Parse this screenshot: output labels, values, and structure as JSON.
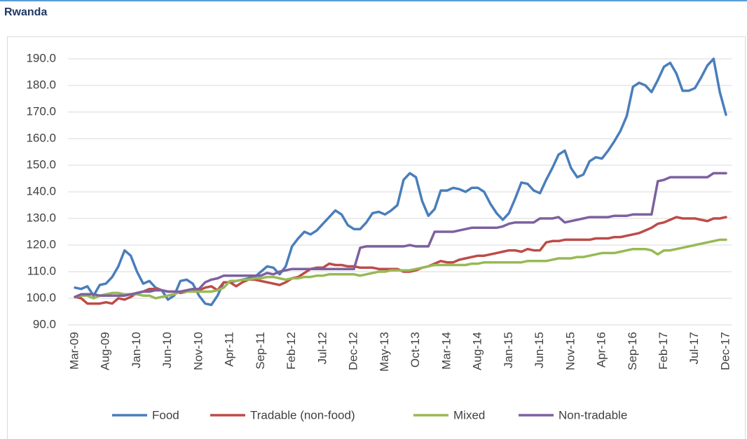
{
  "header": {
    "title": "Rwanda"
  },
  "chart_data": {
    "type": "line",
    "categories": [
      "Mar-09",
      null,
      null,
      null,
      null,
      "Aug-09",
      null,
      null,
      null,
      null,
      "Jan-10",
      null,
      null,
      null,
      null,
      "Jun-10",
      null,
      null,
      null,
      null,
      "Nov-10",
      null,
      null,
      null,
      null,
      "Apr-11",
      null,
      null,
      null,
      null,
      "Sep-11",
      null,
      null,
      null,
      null,
      "Feb-12",
      null,
      null,
      null,
      null,
      "Jul-12",
      null,
      null,
      null,
      null,
      "Dec-12",
      null,
      null,
      null,
      null,
      "May-13",
      null,
      null,
      null,
      null,
      "Oct-13",
      null,
      null,
      null,
      null,
      "Mar-14",
      null,
      null,
      null,
      null,
      "Aug-14",
      null,
      null,
      null,
      null,
      "Jan-15",
      null,
      null,
      null,
      null,
      "Jun-15",
      null,
      null,
      null,
      null,
      "Nov-15",
      null,
      null,
      null,
      null,
      "Apr-16",
      null,
      null,
      null,
      null,
      "Sep-16",
      null,
      null,
      null,
      null,
      "Feb-17",
      null,
      null,
      null,
      null,
      "Jul-17",
      null,
      null,
      null,
      null,
      "Dec-17"
    ],
    "series": [
      {
        "name": "Food",
        "color": "#4a7ebb",
        "values": [
          104,
          103.5,
          104.5,
          101,
          105,
          105.5,
          108,
          112,
          118,
          116,
          110,
          105.5,
          106.5,
          104,
          103,
          99.5,
          101,
          106.5,
          107,
          105.5,
          101,
          98,
          97.5,
          101,
          106,
          106,
          106.5,
          107,
          107.5,
          108,
          110,
          112,
          111.5,
          109,
          112,
          119.5,
          122.5,
          125,
          124,
          125.5,
          128,
          130.5,
          133,
          131.5,
          127.5,
          126,
          126,
          128.5,
          132,
          132.5,
          131.5,
          133,
          135,
          144.5,
          147,
          145.5,
          136.5,
          131,
          133.5,
          140.5,
          140.5,
          141.5,
          141,
          140,
          141.5,
          141.5,
          140,
          135.5,
          132,
          129.5,
          132,
          137.5,
          143.5,
          143,
          140.5,
          139.5,
          144.5,
          149,
          154,
          155.5,
          149,
          145.5,
          146.5,
          151.5,
          153,
          152.5,
          155.5,
          159,
          163,
          168.5,
          179.5,
          181,
          180,
          177.5,
          182,
          187,
          188.5,
          184.5,
          178,
          178,
          179,
          183,
          187.5,
          190,
          177.5,
          169
        ]
      },
      {
        "name": "Tradable (non-food)",
        "color": "#be4b48",
        "values": [
          100.5,
          100,
          98,
          98,
          98,
          98.5,
          98,
          100,
          99.5,
          100.5,
          102,
          102.5,
          103.5,
          103.5,
          103,
          102.5,
          102.5,
          102,
          102.5,
          103,
          103,
          104,
          104.5,
          103,
          106,
          106,
          104.5,
          106,
          107,
          107,
          106.5,
          106,
          105.5,
          105,
          106,
          107.5,
          108,
          109.5,
          111,
          111.5,
          111.5,
          113,
          112.5,
          112.5,
          112,
          112,
          111.5,
          111.5,
          111.5,
          111,
          111,
          111,
          111,
          110,
          110,
          110.5,
          111.5,
          112,
          113,
          114,
          113.5,
          113.5,
          114.5,
          115,
          115.5,
          116,
          116,
          116.5,
          117,
          117.5,
          118,
          118,
          117.5,
          118.5,
          118,
          118,
          121,
          121.5,
          121.5,
          122,
          122,
          122,
          122,
          122,
          122.5,
          122.5,
          122.5,
          123,
          123,
          123.5,
          124,
          124.5,
          125.5,
          126.5,
          128,
          128.5,
          129.5,
          130.5,
          130,
          130,
          130,
          129.5,
          129,
          130,
          130,
          130.5
        ]
      },
      {
        "name": "Mixed",
        "color": "#98b954",
        "values": [
          100.5,
          101,
          101,
          100,
          101,
          101.5,
          102,
          102,
          101.5,
          101.5,
          101.5,
          101,
          101,
          100,
          100.5,
          101,
          101.5,
          102.5,
          102.5,
          102.5,
          102.5,
          102.5,
          102.5,
          103,
          104,
          106.5,
          106.5,
          107,
          107,
          107.5,
          107.5,
          108,
          108,
          107.5,
          107,
          107.5,
          107.5,
          108,
          108,
          108.5,
          108.5,
          109,
          109,
          109,
          109,
          109,
          108.5,
          109,
          109.5,
          110,
          110,
          110.5,
          110.5,
          110.5,
          110.5,
          111,
          111.5,
          112,
          112.5,
          112.5,
          112.5,
          112.5,
          112.5,
          112.5,
          113,
          113,
          113.5,
          113.5,
          113.5,
          113.5,
          113.5,
          113.5,
          113.5,
          114,
          114,
          114,
          114,
          114.5,
          115,
          115,
          115,
          115.5,
          115.5,
          116,
          116.5,
          117,
          117,
          117,
          117.5,
          118,
          118.5,
          118.5,
          118.5,
          118,
          116.5,
          118,
          118,
          118.5,
          119,
          119.5,
          120,
          120.5,
          121,
          121.5,
          122,
          122
        ]
      },
      {
        "name": "Non-tradable",
        "color": "#7d60a0",
        "values": [
          100.5,
          101.5,
          101.5,
          101.5,
          101,
          101,
          101,
          101,
          101,
          101.5,
          102,
          102.5,
          102.5,
          103,
          103,
          102.5,
          102.5,
          102.5,
          103,
          103.5,
          103.5,
          106,
          107,
          107.5,
          108.5,
          108.5,
          108.5,
          108.5,
          108.5,
          108.5,
          108.5,
          109.5,
          109,
          110,
          110.5,
          111,
          111,
          111,
          111,
          111,
          111,
          111,
          111,
          111,
          111,
          111,
          119,
          119.5,
          119.5,
          119.5,
          119.5,
          119.5,
          119.5,
          119.5,
          120,
          119.5,
          119.5,
          119.5,
          125,
          125,
          125,
          125,
          125.5,
          126,
          126.5,
          126.5,
          126.5,
          126.5,
          126.5,
          127,
          128,
          128.5,
          128.5,
          128.5,
          128.5,
          130,
          130,
          130,
          130.5,
          128.5,
          129,
          129.5,
          130,
          130.5,
          130.5,
          130.5,
          130.5,
          131,
          131,
          131,
          131.5,
          131.5,
          131.5,
          131.5,
          144,
          144.5,
          145.5,
          145.5,
          145.5,
          145.5,
          145.5,
          145.5,
          145.5,
          147,
          147,
          147
        ]
      }
    ],
    "ylim": [
      90,
      190
    ],
    "yticks": [
      {
        "value": 90,
        "label": "90.0"
      },
      {
        "value": 100,
        "label": "100.0"
      },
      {
        "value": 110,
        "label": "110.0"
      },
      {
        "value": 120,
        "label": "120.0"
      },
      {
        "value": 130,
        "label": "130.0"
      },
      {
        "value": 140,
        "label": "140.0"
      },
      {
        "value": 150,
        "label": "150.0"
      },
      {
        "value": 160,
        "label": "160.0"
      },
      {
        "value": 170,
        "label": "170.0"
      },
      {
        "value": 180,
        "label": "180.0"
      },
      {
        "value": 190,
        "label": "190.0"
      }
    ],
    "grid": true,
    "legend": "bottom"
  }
}
